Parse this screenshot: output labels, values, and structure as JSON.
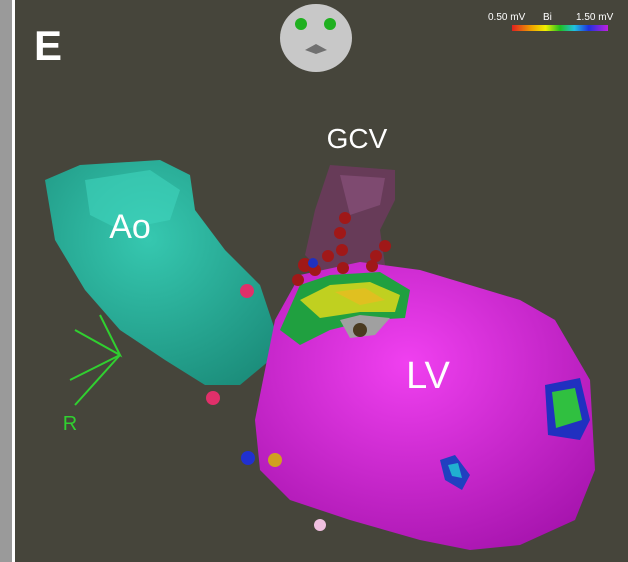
{
  "panel_label": "E",
  "colorbar": {
    "min_label": "0.50 mV",
    "mode": "Bi",
    "max_label": "1.50 mV"
  },
  "labels": {
    "gcv": "GCV",
    "ao": "Ao",
    "lv": "LV",
    "orientation": "R"
  }
}
